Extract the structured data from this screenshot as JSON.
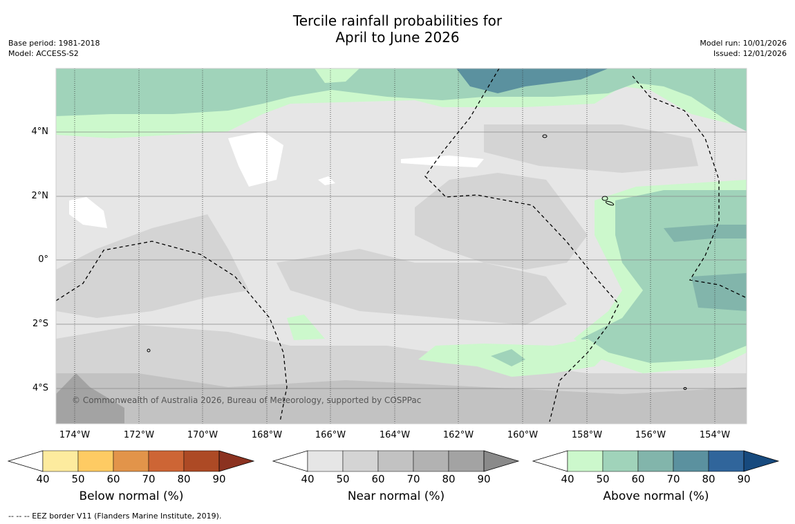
{
  "header": {
    "title_line1": "Tercile rainfall probabilities for",
    "title_line2": "April to June 2026",
    "base_period": "Base period: 1981-2018",
    "model": "Model: ACCESS-S2",
    "model_run": "Model run: 10/01/2026",
    "issued": "Issued: 12/01/2026"
  },
  "map": {
    "lat_labels": [
      "4°N",
      "2°N",
      "0°",
      "2°S",
      "4°S"
    ],
    "lon_labels": [
      "174°W",
      "172°W",
      "170°W",
      "168°W",
      "166°W",
      "164°W",
      "162°W",
      "160°W",
      "158°W",
      "156°W",
      "154°W"
    ],
    "copyright": "© Commonwealth of Australia 2026, Bureau of Meteorology, supported by COSPPac"
  },
  "legends": [
    {
      "title": "Below normal (%)",
      "ticks": [
        "40",
        "50",
        "60",
        "70",
        "80",
        "90"
      ],
      "colors": [
        "#ffffff",
        "#fdeb9e",
        "#fecb63",
        "#e2944a",
        "#cd6535",
        "#ad4a25",
        "#8b3220"
      ]
    },
    {
      "title": "Near normal (%)",
      "ticks": [
        "40",
        "50",
        "60",
        "70",
        "80",
        "90"
      ],
      "colors": [
        "#ffffff",
        "#e6e6e6",
        "#d4d4d4",
        "#c2c2c2",
        "#b2b2b2",
        "#a3a3a3",
        "#8a8a8a"
      ]
    },
    {
      "title": "Above normal (%)",
      "ticks": [
        "40",
        "50",
        "60",
        "70",
        "80",
        "90"
      ],
      "colors": [
        "#ffffff",
        "#ccf8cc",
        "#a0d3ba",
        "#82b5ab",
        "#5b919f",
        "#30659b",
        "#174a7e"
      ]
    }
  ],
  "footer": {
    "eez_note": "--  --  -- EEZ border V11 (Flanders Marine Institute, 2019)."
  }
}
